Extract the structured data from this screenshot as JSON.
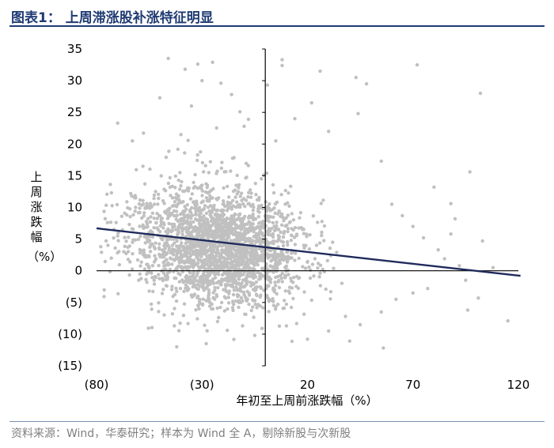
{
  "header": {
    "title": "图表1：  上周滞涨股补涨特征明显"
  },
  "footer": {
    "source": "资料来源：Wind，华泰研究；样本为 Wind 全 A，剔除新股与次新股"
  },
  "colors": {
    "points": "#c0c0c0",
    "trend": "#1f2a5c",
    "axis": "#000000",
    "header_rule": "#1f3b73"
  },
  "chart_data": {
    "type": "scatter",
    "title": "",
    "xlabel": "年初至上周前涨跌幅（%）",
    "ylabel_chars": [
      "上",
      "周",
      "涨",
      "跌",
      "幅"
    ],
    "ylabel_unit": "（%）",
    "xlim": [
      -80,
      120
    ],
    "ylim": [
      -15,
      35
    ],
    "x_ticks": [
      {
        "value": -80,
        "label": "(80)"
      },
      {
        "value": -30,
        "label": "(30)"
      },
      {
        "value": 20,
        "label": "20"
      },
      {
        "value": 70,
        "label": "70"
      },
      {
        "value": 120,
        "label": "120"
      }
    ],
    "y_ticks": [
      {
        "value": 35,
        "label": "35"
      },
      {
        "value": 30,
        "label": "30"
      },
      {
        "value": 25,
        "label": "25"
      },
      {
        "value": 20,
        "label": "20"
      },
      {
        "value": 15,
        "label": "15"
      },
      {
        "value": 10,
        "label": "10"
      },
      {
        "value": 5,
        "label": "5"
      },
      {
        "value": 0,
        "label": "0"
      },
      {
        "value": -5,
        "label": "(5)"
      },
      {
        "value": -10,
        "label": "(10)"
      },
      {
        "value": -15,
        "label": "(15)"
      }
    ],
    "grid": false,
    "axes_cross_at": {
      "x": 0,
      "y": 0
    },
    "trendline": {
      "x": [
        -80,
        121
      ],
      "y": [
        6.7,
        -0.8
      ]
    },
    "series": [
      {
        "points": [
          [
            -46,
            33.5
          ],
          [
            8,
            33.3
          ],
          [
            -25,
            32.9
          ],
          [
            -32,
            32.6
          ],
          [
            8,
            32.4
          ],
          [
            -38,
            31.8
          ],
          [
            26,
            31.5
          ],
          [
            43,
            30.5
          ],
          [
            -30,
            30.0
          ],
          [
            -21,
            29.6
          ],
          [
            1,
            29.3
          ],
          [
            72,
            32.5
          ],
          [
            48,
            29.5
          ],
          [
            102,
            28.0
          ],
          [
            -50,
            27.3
          ],
          [
            -16,
            27.8
          ],
          [
            22,
            26.5
          ],
          [
            44,
            24.8
          ],
          [
            -70,
            23.3
          ],
          [
            -63,
            20.5
          ],
          [
            -10,
            22.8
          ],
          [
            -8,
            23.9
          ],
          [
            -47,
            17.9
          ],
          [
            -58,
            16.5
          ],
          [
            55,
            17.3
          ],
          [
            97,
            15.6
          ],
          [
            80,
            13.2
          ],
          [
            88,
            10.6
          ],
          [
            90,
            8.2
          ],
          [
            88,
            5.8
          ],
          [
            103,
            4.7
          ],
          [
            108,
            0.5
          ],
          [
            -78,
            3.8
          ],
          [
            -70,
            5.5
          ],
          [
            -65,
            1.8
          ],
          [
            77,
            -2.8
          ],
          [
            101,
            -4.3
          ],
          [
            96,
            -6.2
          ],
          [
            115,
            -7.9
          ],
          [
            -55,
            -3.2
          ],
          [
            -44,
            -6.8
          ],
          [
            -42,
            -12.0
          ],
          [
            -28,
            -11.5
          ],
          [
            -18,
            -9.4
          ],
          [
            40,
            -11.1
          ],
          [
            56,
            -12.2
          ],
          [
            62,
            -4.5
          ],
          [
            38,
            -7.2
          ],
          [
            -35,
            26.0
          ],
          [
            -12,
            25.1
          ],
          [
            14,
            24.0
          ],
          [
            30,
            22.0
          ],
          [
            -40,
            21.5
          ],
          [
            5,
            20.5
          ],
          [
            -52,
            12.5
          ],
          [
            60,
            10.5
          ],
          [
            65,
            8.7
          ],
          [
            70,
            7.0
          ],
          [
            75,
            5.2
          ],
          [
            82,
            3.3
          ],
          [
            85,
            1.9
          ],
          [
            92,
            0.8
          ],
          [
            95,
            -1.5
          ],
          [
            70,
            -3.5
          ],
          [
            55,
            -6.5
          ],
          [
            45,
            -8.5
          ],
          [
            30,
            -9.5
          ],
          [
            20,
            -10.8
          ],
          [
            10,
            -8.7
          ],
          [
            -5,
            -10.2
          ],
          [
            -60,
            -1.5
          ],
          [
            -73,
            2.0
          ]
        ]
      }
    ],
    "cloud": {
      "count": 2400,
      "center_x": -22,
      "spread_x": 15,
      "center_y": 3.8,
      "spread_y": 3.6
    }
  }
}
